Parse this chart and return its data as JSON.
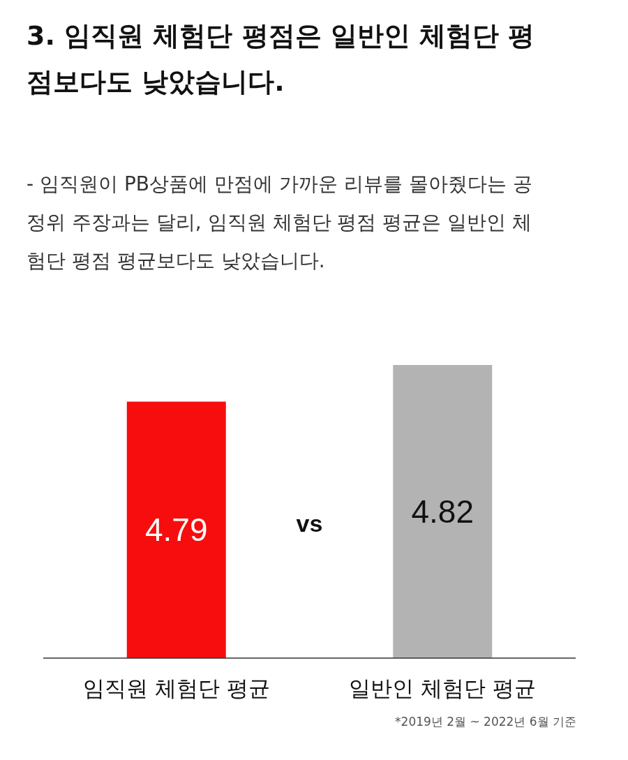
{
  "chart_data": {
    "type": "bar",
    "title": "3. 임직원 체험단 평점은 일반인 체험단 평점보다도 낮았습니다.",
    "subtitle": "- 임직원이 PB상품에 만점에 가까운 리뷰를 몰아줬다는 공정위 주장과는 달리, 임직원 체험단 평점 평균은 일반인 체험단 평점 평균보다도 낮았습니다.",
    "categories": [
      "임직원 체험단 평균",
      "일반인 체험단 평균"
    ],
    "values": [
      4.79,
      4.82
    ],
    "colors": [
      "#f70d0d",
      "#b3b3b3"
    ],
    "ylim": [
      4.58,
      4.82
    ],
    "data_labels": true,
    "annotations": [
      "vs",
      "*2019년 2월 ~ 2022년 6월 기준"
    ]
  }
}
